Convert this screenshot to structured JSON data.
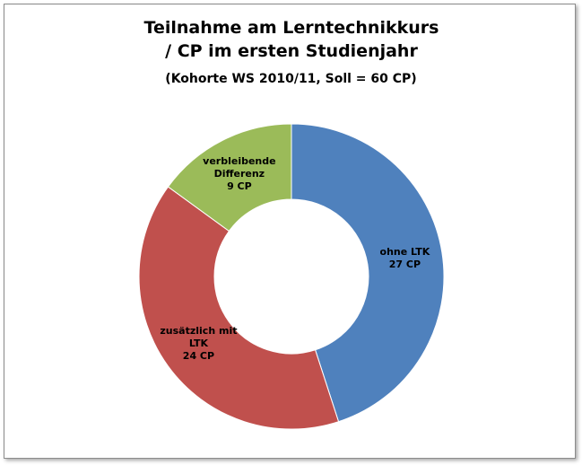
{
  "chart_data": {
    "type": "donut",
    "title": "Teilnahme am Lerntechnikkurs / CP im ersten Studienjahr",
    "subtitle": "(Kohorte WS 2010/11, Soll = 60 CP)",
    "categories": [
      "ohne LTK",
      "zusätzlich mit LTK",
      "verbleibende Differenz"
    ],
    "values": [
      27,
      24,
      9
    ],
    "value_labels": [
      "27 CP",
      "24 CP",
      "9 CP"
    ],
    "colors": [
      "#4f81bd",
      "#c0504d",
      "#9bbb59"
    ]
  }
}
